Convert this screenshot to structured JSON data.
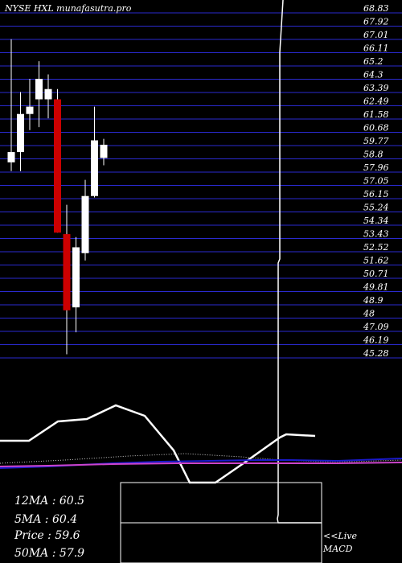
{
  "title": "NYSE HXL munafasutra.pro",
  "colors": {
    "background": "#000000",
    "grid": "#2a2ad0",
    "up_candle": "#ffffff",
    "down_candle": "#cc0000",
    "wick": "#ffffff",
    "ma_line": "#ffffff",
    "macd_blue": "#1a1acc",
    "macd_purple": "#cc44cc"
  },
  "stats": {
    "ma12": "12MA : 60.5",
    "ma5": "5MA : 60.4",
    "price": "Price  : 59.6",
    "ma50": "50MA : 57.9"
  },
  "live_label": "<<Live",
  "macd_label": "MACD",
  "chart_data": {
    "type": "candlestick",
    "title": "NYSE HXL munafasutra.pro",
    "ylim": [
      44.2,
      69.2
    ],
    "y_ticks": [
      "68.83",
      "67.92",
      "67.01",
      "66.11",
      "65.2",
      "64.3",
      "63.39",
      "62.49",
      "61.58",
      "60.68",
      "59.77",
      "58.8",
      "57.96",
      "57.05",
      "56.15",
      "55.24",
      "54.34",
      "53.43",
      "52.52",
      "51.62",
      "50.71",
      "49.81",
      "48.9",
      "48",
      "47.09",
      "46.19",
      "45.28"
    ],
    "grid": true,
    "candles": [
      {
        "open": 58.3,
        "high": 66.7,
        "low": 57.7,
        "close": 59.0
      },
      {
        "open": 59.0,
        "high": 63.1,
        "low": 57.7,
        "close": 61.6
      },
      {
        "open": 61.6,
        "high": 64.0,
        "low": 60.5,
        "close": 62.1
      },
      {
        "open": 62.6,
        "high": 65.2,
        "low": 60.7,
        "close": 64.0
      },
      {
        "open": 62.6,
        "high": 64.3,
        "low": 61.3,
        "close": 63.3
      },
      {
        "open": 62.6,
        "high": 63.3,
        "low": 53.5,
        "close": 53.5
      },
      {
        "open": 53.4,
        "high": 55.4,
        "low": 45.2,
        "close": 48.2
      },
      {
        "open": 48.4,
        "high": 53.2,
        "low": 46.7,
        "close": 52.5
      },
      {
        "open": 52.1,
        "high": 57.1,
        "low": 51.6,
        "close": 56.0
      },
      {
        "open": 56.0,
        "high": 62.1,
        "low": 55.9,
        "close": 59.8
      },
      {
        "open": 58.6,
        "high": 59.9,
        "low": 58.1,
        "close": 59.5
      }
    ]
  }
}
